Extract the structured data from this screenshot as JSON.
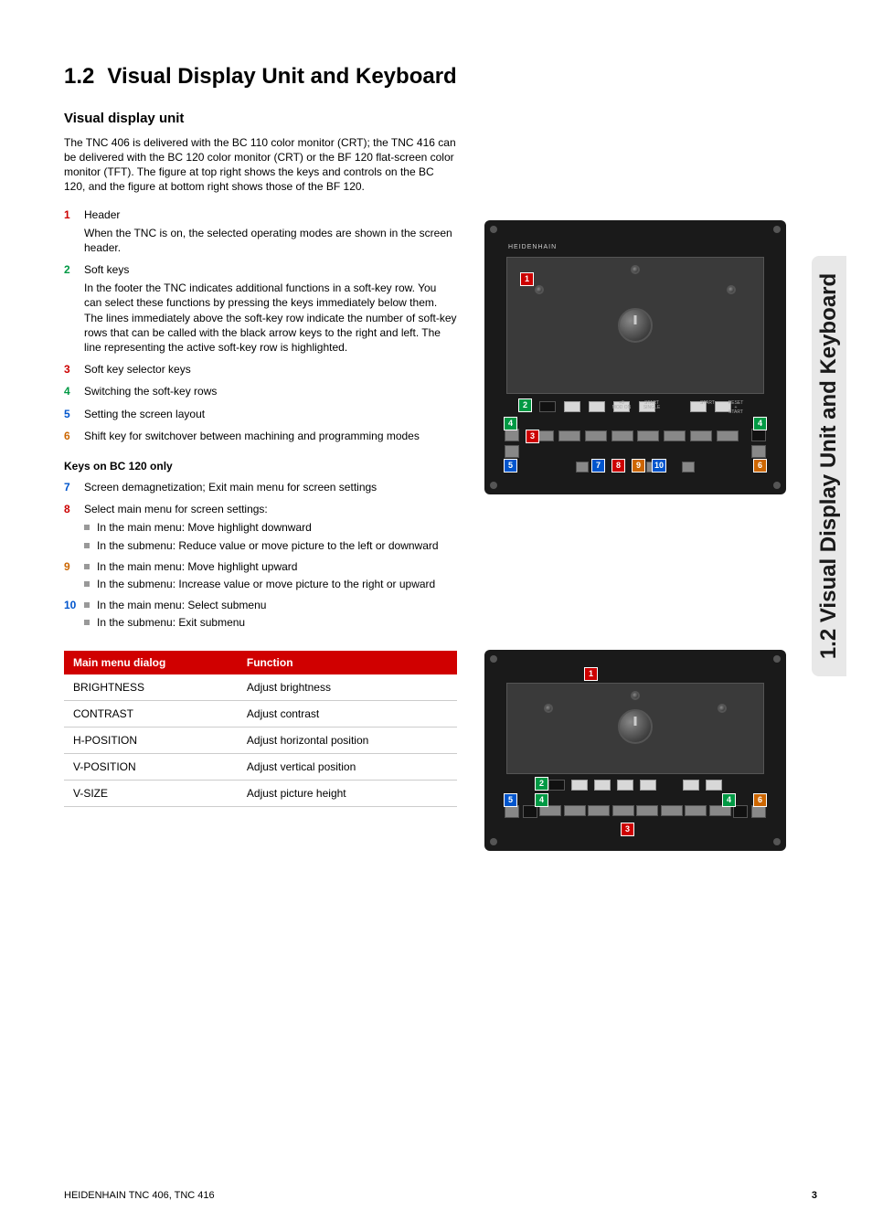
{
  "side_tab": "1.2 Visual Display Unit and Keyboard",
  "section": {
    "number": "1.2",
    "title": "Visual Display Unit and Keyboard"
  },
  "subsection": "Visual display unit",
  "intro": "The TNC 406 is delivered with the BC 110 color monitor (CRT); the TNC 416 can be delivered with the BC 120 color monitor (CRT) or the BF 120 flat-screen color monitor (TFT). The figure at top right shows the keys and controls on the BC 120, and the figure at bottom right shows those of the BF 120.",
  "items": [
    {
      "num": "1",
      "cls": "n1",
      "title": "Header",
      "desc": "When the TNC is on, the selected operating modes are shown in the screen header."
    },
    {
      "num": "2",
      "cls": "n2",
      "title": "Soft keys",
      "desc": "In the footer the TNC indicates additional functions in a soft-key row. You can select these functions by pressing the keys immediately below them. The lines immediately above the soft-key row indicate the number of soft-key rows that can be called with the black arrow keys to the right and left. The line representing the active soft-key row is highlighted."
    },
    {
      "num": "3",
      "cls": "n3",
      "title": "Soft key selector keys"
    },
    {
      "num": "4",
      "cls": "n4",
      "title": "Switching the soft-key rows"
    },
    {
      "num": "5",
      "cls": "n5",
      "title": "Setting the screen layout"
    },
    {
      "num": "6",
      "cls": "n6",
      "title": "Shift key for switchover between machining and programming modes"
    }
  ],
  "bc_heading": "Keys on BC 120 only",
  "items2": [
    {
      "num": "7",
      "cls": "n7",
      "title": "Screen demagnetization; Exit main menu for screen settings"
    },
    {
      "num": "8",
      "cls": "n8",
      "title": "Select main menu for screen settings:",
      "subs": [
        "In the main menu: Move highlight downward",
        "In the submenu: Reduce value or move picture to the left or downward"
      ]
    },
    {
      "num": "9",
      "cls": "n9",
      "titleSub": true,
      "subs": [
        "In the main menu: Move highlight upward",
        "In the submenu: Increase value or move picture to the right or upward"
      ]
    },
    {
      "num": "10",
      "cls": "n10",
      "titleSub": true,
      "subs": [
        "In the main menu: Select submenu",
        "In the submenu: Exit submenu"
      ]
    }
  ],
  "table": {
    "head": [
      "Main menu dialog",
      "Function"
    ],
    "rows": [
      [
        "BRIGHTNESS",
        "Adjust brightness"
      ],
      [
        "CONTRAST",
        "Adjust contrast"
      ],
      [
        "H-POSITION",
        "Adjust horizontal position"
      ],
      [
        "V-POSITION",
        "Adjust vertical position"
      ],
      [
        "V-SIZE",
        "Adjust picture height"
      ]
    ]
  },
  "footer": {
    "left": "HEIDENHAIN TNC 406, TNC 416",
    "page": "3"
  },
  "fig": {
    "brand": "HEIDENHAIN",
    "colors": {
      "bg": "#1a1a1a",
      "screen": "#3a3a3a",
      "key_grey": "#888888",
      "key_black": "#111111",
      "key_white": "#d8d8d8"
    },
    "fig1_callouts": [
      "1",
      "2",
      "3",
      "4",
      "4",
      "5",
      "6",
      "7",
      "8",
      "9",
      "10"
    ],
    "fig2_callouts": [
      "1",
      "2",
      "3",
      "4",
      "4",
      "5",
      "6"
    ]
  }
}
